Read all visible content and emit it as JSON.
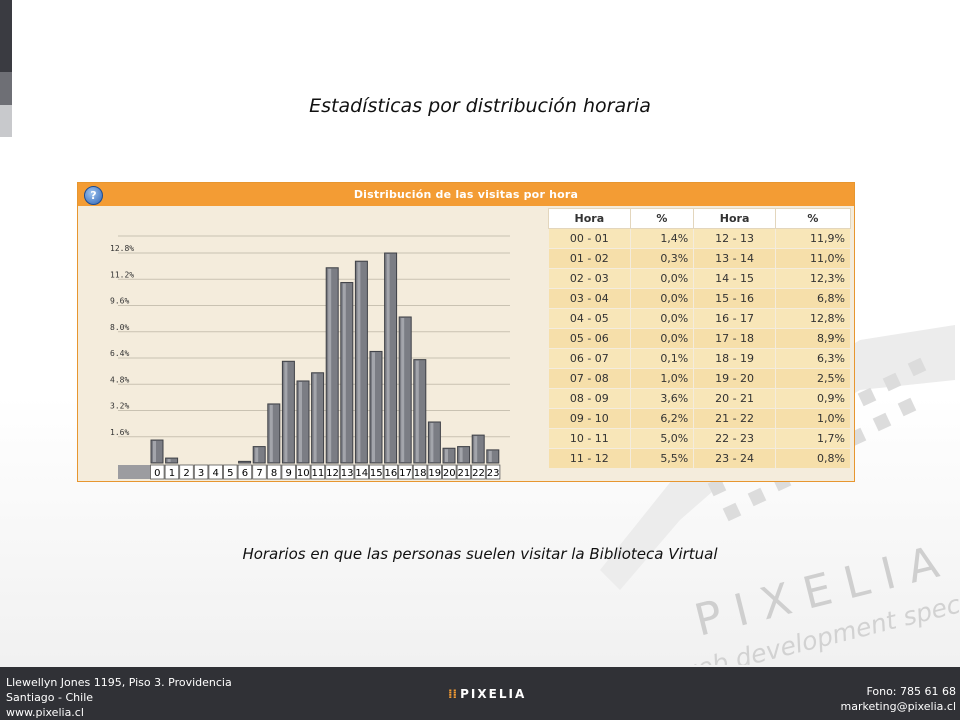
{
  "page": {
    "title": "Estadísticas por distribución horaria",
    "caption": "Horarios en que las personas suelen visitar la Biblioteca Virtual"
  },
  "panel": {
    "header": "Distribución de las visitas por hora",
    "help_icon": "?",
    "table_headers": [
      "Hora",
      "%",
      "Hora",
      "%"
    ]
  },
  "chart_data": {
    "type": "bar",
    "title": "",
    "xlabel": "",
    "ylabel": "",
    "categories": [
      "0",
      "1",
      "2",
      "3",
      "4",
      "5",
      "6",
      "7",
      "8",
      "9",
      "10",
      "11",
      "12",
      "13",
      "14",
      "15",
      "16",
      "17",
      "18",
      "19",
      "20",
      "21",
      "22",
      "23"
    ],
    "values": [
      1.4,
      0.3,
      0.0,
      0.0,
      0.0,
      0.0,
      0.1,
      1.0,
      3.6,
      6.2,
      5.0,
      5.5,
      11.9,
      11.0,
      12.3,
      6.8,
      12.8,
      8.9,
      6.3,
      2.5,
      0.9,
      1.0,
      1.7,
      0.8
    ],
    "y_ticks": [
      "1.6%",
      "3.2%",
      "4.8%",
      "6.4%",
      "8.0%",
      "9.6%",
      "11.2%",
      "12.8%"
    ],
    "y_tick_values": [
      1.6,
      3.2,
      4.8,
      6.4,
      8.0,
      9.6,
      11.2,
      12.8
    ],
    "ylim": [
      0,
      12.8
    ],
    "bar_color": "#7b7d84",
    "grid": true
  },
  "table_rows": [
    {
      "h1": "00 - 01",
      "p1": "1,4%",
      "h2": "12 - 13",
      "p2": "11,9%"
    },
    {
      "h1": "01 - 02",
      "p1": "0,3%",
      "h2": "13 - 14",
      "p2": "11,0%"
    },
    {
      "h1": "02 - 03",
      "p1": "0,0%",
      "h2": "14 - 15",
      "p2": "12,3%"
    },
    {
      "h1": "03 - 04",
      "p1": "0,0%",
      "h2": "15 - 16",
      "p2": "6,8%"
    },
    {
      "h1": "04 - 05",
      "p1": "0,0%",
      "h2": "16 - 17",
      "p2": "12,8%"
    },
    {
      "h1": "05 - 06",
      "p1": "0,0%",
      "h2": "17 - 18",
      "p2": "8,9%"
    },
    {
      "h1": "06 - 07",
      "p1": "0,1%",
      "h2": "18 - 19",
      "p2": "6,3%"
    },
    {
      "h1": "07 - 08",
      "p1": "1,0%",
      "h2": "19 - 20",
      "p2": "2,5%"
    },
    {
      "h1": "08 - 09",
      "p1": "3,6%",
      "h2": "20 - 21",
      "p2": "0,9%"
    },
    {
      "h1": "09 - 10",
      "p1": "6,2%",
      "h2": "21 - 22",
      "p2": "1,0%"
    },
    {
      "h1": "10 - 11",
      "p1": "5,0%",
      "h2": "22 - 23",
      "p2": "1,7%"
    },
    {
      "h1": "11 - 12",
      "p1": "5,5%",
      "h2": "23 - 24",
      "p2": "0,8%"
    }
  ],
  "watermark": {
    "brand": "PIXELIA",
    "tagline": "web development specialists"
  },
  "footer": {
    "address_line1": "Llewellyn Jones 1195, Piso 3. Providencia",
    "address_line2": "Santiago - Chile",
    "website": "www.pixelia.cl",
    "logo_text": "PIXELIA",
    "phone": "Fono: 785 61 68",
    "email": "marketing@pixelia.cl"
  },
  "colors": {
    "accent": "#f39c34",
    "panel_bg": "#f4ecdc",
    "footer_bg": "#303136"
  }
}
